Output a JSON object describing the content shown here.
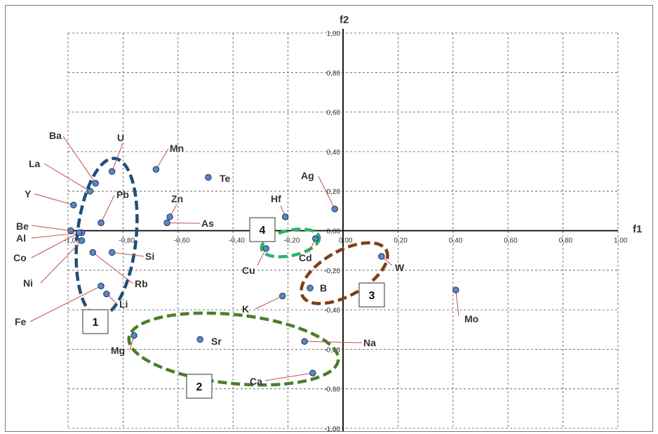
{
  "chart_data": {
    "type": "scatter",
    "title": "",
    "xlabel": "f1",
    "ylabel": "f2",
    "xlim": [
      -1.0,
      1.0
    ],
    "ylim": [
      -1.0,
      1.0
    ],
    "grid": true,
    "grid_style": "dashed",
    "xticks": [
      "-1,00",
      "-0,80",
      "-0,60",
      "-0,40",
      "-0,20",
      "0,00",
      "0,20",
      "0,40",
      "0,60",
      "0,80",
      "1,00"
    ],
    "yticks": [
      "1,00",
      "0,80",
      "0,60",
      "0,40",
      "0,20",
      "0,00",
      "-0,20",
      "-0,40",
      "-0,60",
      "-0,80",
      "-1,00"
    ],
    "points": [
      {
        "label": "Ba",
        "x": -0.9,
        "y": 0.24
      },
      {
        "label": "U",
        "x": -0.84,
        "y": 0.3
      },
      {
        "label": "La",
        "x": -0.92,
        "y": 0.2
      },
      {
        "label": "Mn",
        "x": -0.68,
        "y": 0.31
      },
      {
        "label": "Te",
        "x": -0.49,
        "y": 0.27
      },
      {
        "label": "Y",
        "x": -0.98,
        "y": 0.13
      },
      {
        "label": "Pb",
        "x": -0.88,
        "y": 0.04
      },
      {
        "label": "Zn",
        "x": -0.63,
        "y": 0.07
      },
      {
        "label": "As",
        "x": -0.64,
        "y": 0.04
      },
      {
        "label": "Be",
        "x": -0.99,
        "y": 0.0
      },
      {
        "label": "Al",
        "x": -0.95,
        "y": -0.01
      },
      {
        "label": "Co",
        "x": -0.96,
        "y": -0.01
      },
      {
        "label": "Ni",
        "x": -0.95,
        "y": -0.05
      },
      {
        "label": "Fe",
        "x": -0.88,
        "y": -0.28
      },
      {
        "label": "Si",
        "x": -0.84,
        "y": -0.11
      },
      {
        "label": "Rb",
        "x": -0.91,
        "y": -0.11
      },
      {
        "label": "Li",
        "x": -0.86,
        "y": -0.32
      },
      {
        "label": "Hf",
        "x": -0.21,
        "y": 0.07
      },
      {
        "label": "Ag",
        "x": -0.03,
        "y": 0.11
      },
      {
        "label": "Cd",
        "x": -0.1,
        "y": -0.04
      },
      {
        "label": "Cu",
        "x": -0.28,
        "y": -0.09
      },
      {
        "label": "W",
        "x": 0.14,
        "y": -0.13
      },
      {
        "label": "B",
        "x": -0.12,
        "y": -0.29
      },
      {
        "label": "K",
        "x": -0.22,
        "y": -0.33
      },
      {
        "label": "Mo",
        "x": 0.41,
        "y": -0.3
      },
      {
        "label": "Mg",
        "x": -0.76,
        "y": -0.53
      },
      {
        "label": "Sr",
        "x": -0.52,
        "y": -0.55
      },
      {
        "label": "Na",
        "x": -0.14,
        "y": -0.56
      },
      {
        "label": "Ca",
        "x": -0.11,
        "y": -0.72
      }
    ],
    "groups": [
      {
        "label": "1",
        "color": "#1f4e79"
      },
      {
        "label": "2",
        "color": "#4e7d2b"
      },
      {
        "label": "3",
        "color": "#7f3f13"
      },
      {
        "label": "4",
        "color": "#2db36a"
      }
    ],
    "marker_color": "#5b86c8",
    "leader_color": "#c0504d"
  }
}
